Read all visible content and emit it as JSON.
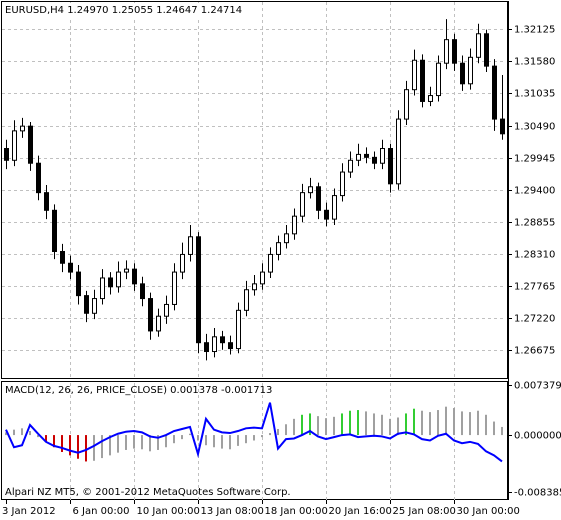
{
  "chart_data": [
    {
      "type": "candlestick",
      "title": "EURUSD,H4  1.24970 1.25055 1.24647 1.24714",
      "categories": [
        "3 Jan 2012",
        null,
        null,
        null,
        null,
        null,
        null,
        null,
        "6 Jan 00:00",
        null,
        null,
        null,
        null,
        null,
        null,
        null,
        "10 Jan 00:00",
        null,
        null,
        null,
        null,
        null,
        null,
        null,
        "13 Jan 08:00",
        null,
        null,
        null,
        null,
        null,
        null,
        null,
        "18 Jan 00:00",
        null,
        null,
        null,
        null,
        null,
        null,
        null,
        "20 Jan 16:00",
        null,
        null,
        null,
        null,
        null,
        null,
        null,
        "25 Jan 08:00",
        null,
        null,
        null,
        null,
        null,
        null,
        null,
        "30 Jan 00:00",
        null,
        null,
        null,
        null,
        null,
        null
      ],
      "open": [
        1.301,
        1.299,
        1.304,
        1.3048,
        1.2985,
        1.2935,
        1.2905,
        1.2835,
        1.2815,
        1.28,
        1.276,
        1.273,
        1.2755,
        1.279,
        1.2775,
        1.28,
        1.2805,
        1.278,
        1.2755,
        1.27,
        1.2725,
        1.2745,
        1.28,
        1.283,
        1.286,
        1.268,
        1.2665,
        1.269,
        1.268,
        1.267,
        1.2735,
        1.277,
        1.278,
        1.28,
        1.283,
        1.285,
        1.2865,
        1.2895,
        1.2935,
        1.2945,
        1.2905,
        1.289,
        1.293,
        1.297,
        1.299,
        1.3,
        1.2995,
        1.2985,
        1.301,
        1.295,
        1.306,
        1.311,
        1.316,
        1.309,
        1.31,
        1.3155,
        1.3195,
        1.3155,
        1.312,
        1.3165,
        1.3205,
        1.315,
        1.306
      ],
      "high": [
        1.3025,
        1.3058,
        1.3062,
        1.3055,
        1.2998,
        1.2948,
        1.2915,
        1.2848,
        1.2828,
        1.2812,
        1.2768,
        1.277,
        1.2805,
        1.28,
        1.2818,
        1.282,
        1.2815,
        1.2792,
        1.2765,
        1.2738,
        1.276,
        1.2815,
        1.285,
        1.288,
        1.2868,
        1.2695,
        1.2705,
        1.27,
        1.2692,
        1.2748,
        1.2785,
        1.2795,
        1.2815,
        1.2842,
        1.2862,
        1.288,
        1.2908,
        1.295,
        1.296,
        1.2952,
        1.2918,
        1.2942,
        1.2985,
        1.3005,
        1.3018,
        1.3012,
        1.3005,
        1.3025,
        1.3018,
        1.3075,
        1.3125,
        1.3178,
        1.317,
        1.3115,
        1.3168,
        1.323,
        1.3205,
        1.3168,
        1.318,
        1.3222,
        1.3212,
        1.3162,
        1.3135
      ],
      "low": [
        1.2975,
        1.298,
        1.3028,
        1.2972,
        1.2922,
        1.289,
        1.2822,
        1.28,
        1.2788,
        1.2745,
        1.2715,
        1.272,
        1.2745,
        1.2762,
        1.2765,
        1.2788,
        1.2768,
        1.2742,
        1.2685,
        1.269,
        1.2712,
        1.2735,
        1.2788,
        1.2818,
        1.2662,
        1.265,
        1.2655,
        1.2668,
        1.266,
        1.2662,
        1.2725,
        1.276,
        1.277,
        1.279,
        1.282,
        1.284,
        1.2855,
        1.2885,
        1.2925,
        1.289,
        1.2878,
        1.288,
        1.292,
        1.296,
        1.298,
        1.2985,
        1.2975,
        1.2975,
        1.2935,
        1.294,
        1.305,
        1.31,
        1.308,
        1.3082,
        1.309,
        1.3145,
        1.3142,
        1.3108,
        1.311,
        1.3155,
        1.314,
        1.304,
        1.3025
      ],
      "close": [
        1.299,
        1.304,
        1.3048,
        1.2985,
        1.2935,
        1.2905,
        1.2835,
        1.2815,
        1.28,
        1.276,
        1.273,
        1.2755,
        1.279,
        1.2775,
        1.28,
        1.2805,
        1.278,
        1.2755,
        1.27,
        1.2725,
        1.2745,
        1.28,
        1.283,
        1.286,
        1.268,
        1.2665,
        1.269,
        1.268,
        1.267,
        1.2735,
        1.277,
        1.278,
        1.28,
        1.283,
        1.285,
        1.2865,
        1.2895,
        1.2935,
        1.2945,
        1.2905,
        1.289,
        1.293,
        1.297,
        1.299,
        1.3,
        1.2995,
        1.2985,
        1.301,
        1.295,
        1.306,
        1.311,
        1.316,
        1.309,
        1.31,
        1.3155,
        1.3195,
        1.3155,
        1.312,
        1.3165,
        1.3205,
        1.315,
        1.306,
        1.3035
      ],
      "up_color": "#ffffff",
      "down_color": "#000000",
      "line_color": "#000000",
      "ylim": [
        1.262,
        1.3259
      ],
      "yticks": [
        1.32125,
        {
          "value": 1.3158,
          "label": "1.31580"
        },
        1.31035,
        {
          "value": 1.3049,
          "label": "1.30490"
        },
        1.29945,
        {
          "value": 1.294,
          "label": "1.29400"
        },
        1.28855,
        {
          "value": 1.2831,
          "label": "1.28310"
        },
        1.27765,
        {
          "value": 1.2722,
          "label": "1.27220"
        },
        1.26675
      ],
      "grid": true
    },
    {
      "type": "macd",
      "title": "MACD(12, 26, 26, PRICE_CLOSE) 0.001378 -0.001713",
      "annotation": "Alpari NZ MT5, © 2001-2012 MetaQuotes Software Corp.",
      "values": [
        0.0004,
        0.0008,
        0.001,
        0.0006,
        -0.0003,
        -0.001,
        -0.0018,
        -0.0025,
        -0.003,
        -0.0035,
        -0.0039,
        -0.0038,
        -0.0034,
        -0.003,
        -0.0026,
        -0.0022,
        -0.002,
        -0.0021,
        -0.0024,
        -0.0022,
        -0.0018,
        -0.0012,
        -0.0006,
        0.0002,
        -0.0008,
        -0.0015,
        -0.0018,
        -0.002,
        -0.0021,
        -0.0016,
        -0.0012,
        -0.0008,
        -0.0003,
        0.0003,
        0.0009,
        0.0016,
        0.0024,
        0.003,
        0.0032,
        0.0028,
        0.0025,
        0.0027,
        0.0032,
        0.0036,
        0.0037,
        0.0035,
        0.0032,
        0.003,
        0.0024,
        0.0026,
        0.0032,
        0.0039,
        0.0036,
        0.0034,
        0.0037,
        0.0042,
        0.004,
        0.0035,
        0.0034,
        0.0036,
        0.003,
        0.002,
        0.0012
      ],
      "bar_colors": [
        "#a0a0a0",
        "#a0a0a0",
        "#a0a0a0",
        "#a0a0a0",
        "#a0a0a0",
        "#cc0000",
        "#cc0000",
        "#cc0000",
        "#cc0000",
        "#cc0000",
        "#cc0000",
        "#a0a0a0",
        "#a0a0a0",
        "#a0a0a0",
        "#a0a0a0",
        "#a0a0a0",
        "#a0a0a0",
        "#a0a0a0",
        "#a0a0a0",
        "#a0a0a0",
        "#a0a0a0",
        "#a0a0a0",
        "#a0a0a0",
        "#a0a0a0",
        "#a0a0a0",
        "#a0a0a0",
        "#a0a0a0",
        "#a0a0a0",
        "#a0a0a0",
        "#a0a0a0",
        "#a0a0a0",
        "#a0a0a0",
        "#a0a0a0",
        "#a0a0a0",
        "#a0a0a0",
        "#a0a0a0",
        "#a0a0a0",
        "#32cd32",
        "#32cd32",
        "#a0a0a0",
        "#a0a0a0",
        "#a0a0a0",
        "#32cd32",
        "#32cd32",
        "#32cd32",
        "#a0a0a0",
        "#a0a0a0",
        "#a0a0a0",
        "#a0a0a0",
        "#a0a0a0",
        "#32cd32",
        "#32cd32",
        "#a0a0a0",
        "#a0a0a0",
        "#a0a0a0",
        "#a0a0a0",
        "#a0a0a0",
        "#a0a0a0",
        "#a0a0a0",
        "#a0a0a0",
        "#a0a0a0",
        "#a0a0a0",
        "#a0a0a0"
      ],
      "signal": [
        0.0008,
        -0.0018,
        -0.0015,
        0.0015,
        0.0002,
        -0.001,
        -0.0016,
        -0.0019,
        -0.0023,
        -0.0026,
        -0.0022,
        -0.0016,
        -0.0009,
        -0.0003,
        0.0002,
        0.0005,
        0.0006,
        0.0004,
        -0.0002,
        -0.0004,
        0.0,
        0.0006,
        0.0009,
        0.0012,
        -0.0028,
        0.0024,
        0.0008,
        0.0004,
        0.0003,
        0.0006,
        0.001,
        0.0011,
        0.001,
        0.0048,
        -0.002,
        -0.0006,
        -0.0005,
        0.0,
        0.0006,
        -0.0002,
        -0.0006,
        -0.0003,
        0.0,
        0.0001,
        -0.0003,
        -0.0002,
        -0.0001,
        -0.0002,
        -0.0005,
        0.0002,
        0.0004,
        0.0001,
        -0.0006,
        -0.0008,
        -0.0001,
        0.0002,
        -0.0008,
        -0.0012,
        -0.001,
        -0.0013,
        -0.0024,
        -0.003,
        -0.0039
      ],
      "signal_color": "#0000ff",
      "ylim": [
        -0.0096,
        0.0077
      ],
      "yticks": [
        0.007379,
        {
          "value": 0,
          "label": "0.000000"
        },
        -0.008385
      ]
    }
  ]
}
